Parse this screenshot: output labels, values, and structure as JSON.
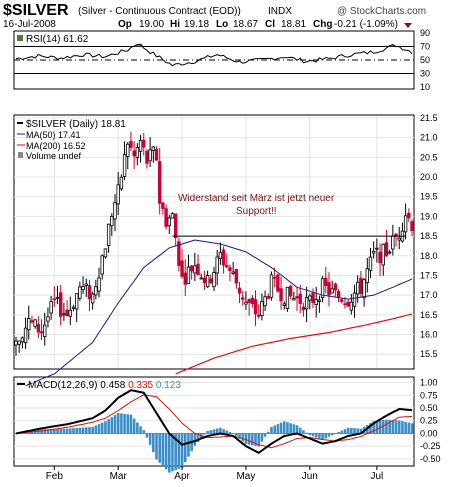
{
  "header": {
    "symbol": "$SILVER",
    "description": "(Silver - Continuous Contract (EOD))",
    "exchange": "INDX",
    "watermark": "@ StockCharts.com",
    "date": "16-Jul-2008",
    "open_label": "Op",
    "open": "19.00",
    "high_label": "Hi",
    "high": "19.18",
    "low_label": "Lo",
    "low": "18.67",
    "close_label": "Cl",
    "close": "18.81",
    "change_label": "Chg",
    "change": "-0.21 (-1.09%)"
  },
  "colors": {
    "up": "#000000",
    "down": "#cc0033",
    "ma50": "#1a1a8c",
    "ma200": "#dd1111",
    "rsi_fill": "#4d7a3a",
    "macd_hist": "#3a8fc8",
    "annotation": "#7a1010"
  },
  "chart_data": [
    {
      "type": "line",
      "name": "rsi-panel",
      "legend": "RSI(14) 61.62",
      "y_ticks": [
        "90",
        "70",
        "50",
        "30",
        "10"
      ],
      "ylim": [
        10,
        90
      ],
      "reference_lines": [
        70,
        50,
        30
      ],
      "x_index": [
        0,
        7,
        14,
        21,
        28,
        35,
        38,
        42,
        49,
        56,
        63,
        70,
        77,
        84,
        91,
        98,
        105,
        112,
        119,
        124
      ],
      "values": [
        52,
        56,
        53,
        58,
        55,
        65,
        75,
        62,
        42,
        48,
        58,
        47,
        50,
        55,
        48,
        52,
        58,
        62,
        72,
        62
      ]
    },
    {
      "type": "candlestick",
      "name": "price-panel",
      "legend": [
        "$SILVER (Daily) 18.81",
        "MA(50) 17.41",
        "MA(200) 16.52",
        "Volume undef"
      ],
      "ylim": [
        15.2,
        21.5
      ],
      "y_ticks": [
        "21.5",
        "21.0",
        "20.5",
        "20.0",
        "19.5",
        "19.0",
        "18.5",
        "18.0",
        "17.5",
        "17.0",
        "16.5",
        "16.0",
        "15.5"
      ],
      "x_labels": [
        {
          "label": "Feb",
          "index": 12
        },
        {
          "label": "Mar",
          "index": 32
        },
        {
          "label": "Apr",
          "index": 52
        },
        {
          "label": "May",
          "index": 72
        },
        {
          "label": "Jun",
          "index": 92
        },
        {
          "label": "Jul",
          "index": 113
        }
      ],
      "close_index": [
        0,
        4,
        8,
        12,
        16,
        20,
        24,
        28,
        30,
        32,
        35,
        37,
        39,
        41,
        43,
        44,
        45,
        47,
        49,
        52,
        56,
        60,
        64,
        68,
        72,
        76,
        80,
        84,
        88,
        92,
        96,
        100,
        104,
        108,
        112,
        116,
        120,
        122,
        124
      ],
      "close_values": [
        15.9,
        16.3,
        16.1,
        16.8,
        16.5,
        17.2,
        17.0,
        18.3,
        19.1,
        19.6,
        20.9,
        20.5,
        20.9,
        20.4,
        20.6,
        20.5,
        19.4,
        18.9,
        19.0,
        17.4,
        17.8,
        17.3,
        18.0,
        17.5,
        16.8,
        16.5,
        17.3,
        17.0,
        16.9,
        16.8,
        17.2,
        17.0,
        16.9,
        17.2,
        18.0,
        18.1,
        18.6,
        19.1,
        18.81
      ],
      "ma50_index": [
        3,
        12,
        24,
        32,
        40,
        48,
        56,
        64,
        72,
        80,
        88,
        96,
        104,
        112,
        118,
        124
      ],
      "ma50_values": [
        14.7,
        15.0,
        15.8,
        16.8,
        17.7,
        18.2,
        18.4,
        18.3,
        18.1,
        17.7,
        17.2,
        17.0,
        16.9,
        17.0,
        17.2,
        17.41
      ],
      "ma200_index": [
        50,
        62,
        74,
        86,
        98,
        110,
        118,
        124
      ],
      "ma200_values": [
        15.0,
        15.4,
        15.7,
        15.9,
        16.05,
        16.25,
        16.4,
        16.52
      ],
      "support_line": {
        "start_index": 49,
        "end_index": 122,
        "value": 18.5
      },
      "annotation": "Widerstand seit März ist jetzt neuer Support!!"
    },
    {
      "type": "line",
      "name": "macd-panel",
      "legend_prefix": "MACD(12,26,9)",
      "legend_values": [
        "0.458",
        "0.335",
        "0.123"
      ],
      "ylim": [
        -0.6,
        1.05
      ],
      "y_ticks": [
        "1.00",
        "0.75",
        "0.50",
        "0.25",
        "0.00",
        "-0.25",
        "-0.50"
      ],
      "x_index": [
        0,
        8,
        16,
        24,
        28,
        32,
        36,
        40,
        44,
        48,
        52,
        56,
        60,
        64,
        68,
        72,
        76,
        80,
        84,
        88,
        92,
        96,
        100,
        104,
        108,
        112,
        116,
        120,
        124
      ],
      "macd": [
        0.0,
        0.1,
        0.18,
        0.3,
        0.45,
        0.7,
        0.85,
        0.8,
        0.4,
        0.0,
        -0.22,
        -0.15,
        -0.05,
        0.0,
        -0.05,
        -0.25,
        -0.38,
        -0.2,
        -0.05,
        0.0,
        -0.1,
        -0.2,
        -0.15,
        -0.05,
        0.0,
        0.2,
        0.35,
        0.48,
        0.458
      ],
      "signal": [
        0.0,
        0.05,
        0.12,
        0.22,
        0.3,
        0.45,
        0.62,
        0.76,
        0.72,
        0.48,
        0.2,
        0.0,
        -0.08,
        -0.07,
        -0.05,
        -0.12,
        -0.22,
        -0.28,
        -0.2,
        -0.1,
        -0.08,
        -0.12,
        -0.15,
        -0.12,
        -0.06,
        0.05,
        0.18,
        0.32,
        0.335
      ]
    }
  ]
}
